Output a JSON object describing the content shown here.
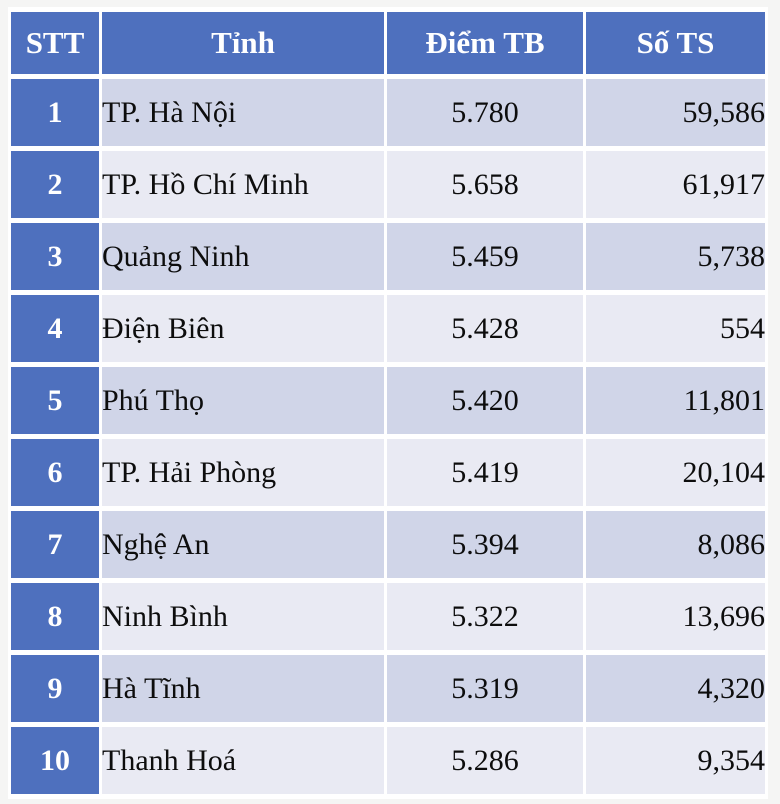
{
  "colors": {
    "accent_blue": "#4e70be",
    "row_band_dark": "#d0d5e8",
    "row_band_light": "#e9eaf3",
    "grid_white": "#ffffff",
    "page_background": "#f5f5f4",
    "header_text": "#ffffff",
    "body_text": "#0d0d0d"
  },
  "chart_data": {
    "type": "table",
    "title": "",
    "columns": [
      "STT",
      "Tỉnh",
      "Điểm TB",
      "Số TS"
    ],
    "rows": [
      [
        "1",
        "TP. Hà Nội",
        "5.780",
        "59,586"
      ],
      [
        "2",
        "TP. Hồ Chí Minh",
        "5.658",
        "61,917"
      ],
      [
        "3",
        "Quảng Ninh",
        "5.459",
        "5,738"
      ],
      [
        "4",
        "Điện Biên",
        "5.428",
        "554"
      ],
      [
        "5",
        "Phú Thọ",
        "5.420",
        "11,801"
      ],
      [
        "6",
        "TP. Hải Phòng",
        "5.419",
        "20,104"
      ],
      [
        "7",
        "Nghệ An",
        "5.394",
        "8,086"
      ],
      [
        "8",
        "Ninh Bình",
        "5.322",
        "13,696"
      ],
      [
        "9",
        "Hà Tĩnh",
        "5.319",
        "4,320"
      ],
      [
        "10",
        "Thanh Hoá",
        "5.286",
        "9,354"
      ]
    ],
    "layout": {
      "banded_rows": true,
      "header_fill": "#4e70be",
      "first_column_fill": "#4e70be",
      "grid": "white-separators"
    }
  }
}
